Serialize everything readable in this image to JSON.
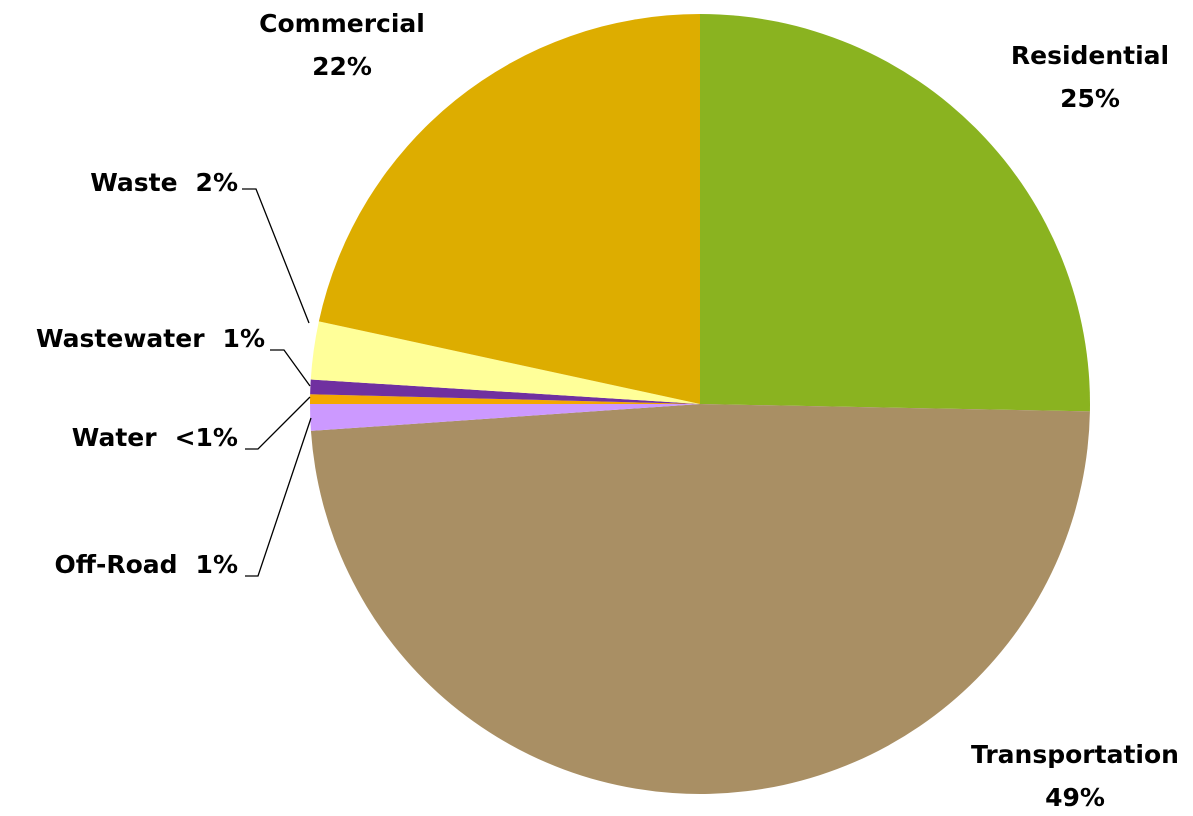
{
  "chart_data": {
    "type": "pie",
    "categories": [
      "Residential",
      "Transportation",
      "Off-Road",
      "Water",
      "Wastewater",
      "Waste",
      "Commercial"
    ],
    "values": [
      25.3,
      48.6,
      1.1,
      0.4,
      0.6,
      2.4,
      21.6
    ],
    "value_labels": [
      "25%",
      "49%",
      "1%",
      "<1%",
      "1%",
      "2%",
      "22%"
    ],
    "colors": [
      "#8ab320",
      "#a98f64",
      "#cc99ff",
      "#f4a800",
      "#7030a0",
      "#ffff99",
      "#ddad00"
    ]
  }
}
